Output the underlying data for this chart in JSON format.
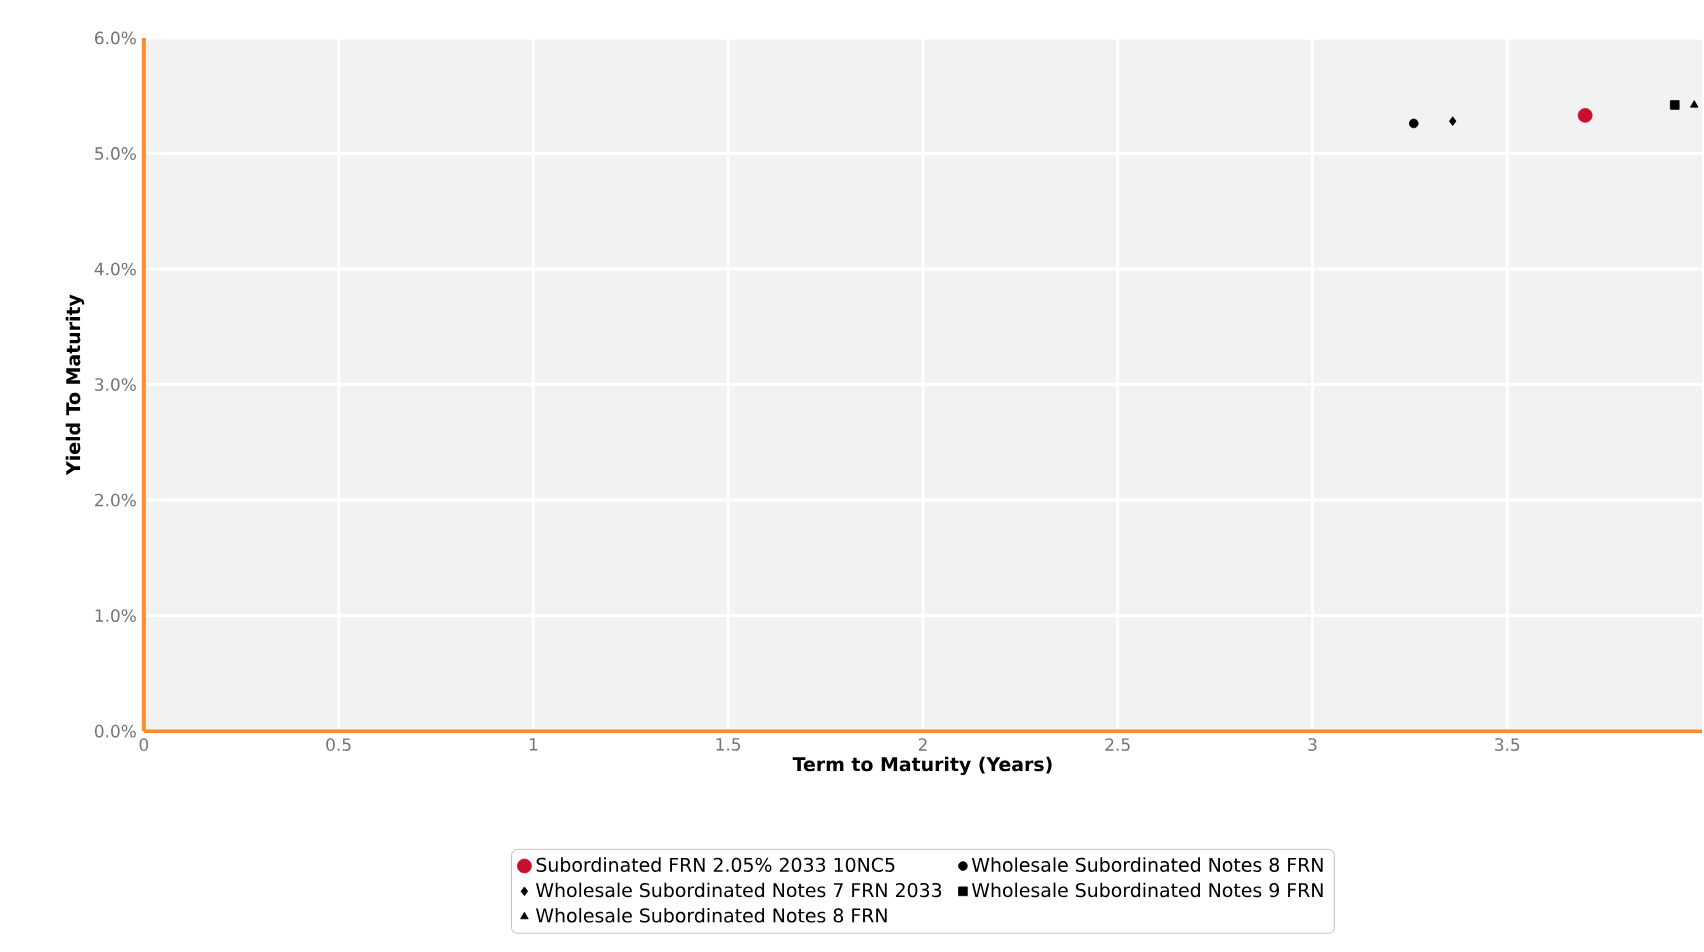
{
  "chart_data": {
    "type": "scatter",
    "xlabel": "Term to Maturity (Years)",
    "ylabel": "Yield To Maturity",
    "xlim": [
      0,
      4.0
    ],
    "xticks": [
      0,
      0.5,
      1,
      1.5,
      2,
      2.5,
      3,
      3.5
    ],
    "ylim": [
      0,
      6
    ],
    "yticks": [
      {
        "value": 0,
        "label": "0.0%"
      },
      {
        "value": 1,
        "label": "1.0%"
      },
      {
        "value": 2,
        "label": "2.0%"
      },
      {
        "value": 3,
        "label": "3.0%"
      },
      {
        "value": 4,
        "label": "4.0%"
      },
      {
        "value": 5,
        "label": "5.0%"
      },
      {
        "value": 6,
        "label": "6.0%"
      }
    ],
    "grid": true,
    "legend": "bottom",
    "series": [
      {
        "name": "Subordinated FRN 2.05% 2033 10NC5",
        "color": "#c8102e",
        "marker": "circle",
        "x": [
          3.7
        ],
        "values": [
          5.33
        ]
      },
      {
        "name": "Wholesale Subordinated Notes 8 FRN",
        "color": "#000000",
        "marker": "circle",
        "x": [
          3.26
        ],
        "values": [
          5.26
        ]
      },
      {
        "name": "Wholesale Subordinated Notes 7 FRN 2033",
        "color": "#000000",
        "marker": "diamond",
        "x": [
          3.36
        ],
        "values": [
          5.28
        ]
      },
      {
        "name": "Wholesale Subordinated Notes 9 FRN",
        "color": "#000000",
        "marker": "square",
        "x": [
          3.93
        ],
        "values": [
          5.42
        ]
      },
      {
        "name": "Wholesale Subordinated Notes 8 FRN",
        "color": "#000000",
        "marker": "triangle",
        "x": [
          3.98
        ],
        "values": [
          5.42
        ]
      }
    ]
  }
}
